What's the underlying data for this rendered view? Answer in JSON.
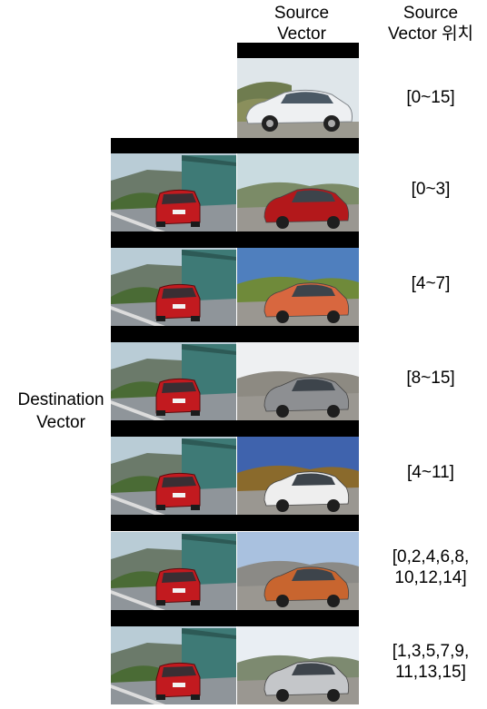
{
  "headers": {
    "source_vector": [
      "Source",
      "Vector"
    ],
    "source_vector_position": [
      "Source",
      "Vector 위치"
    ]
  },
  "destination_label": [
    "Destination",
    "Vector"
  ],
  "top_row": {
    "range_label": [
      "[0~15]"
    ],
    "source_car_color": "#e8ebee"
  },
  "rows": [
    {
      "range_label": [
        "[0~3]"
      ],
      "car_color": "#b3181b",
      "sky": "#c9dbe0",
      "ground": "#7b8b67"
    },
    {
      "range_label": [
        "[4~7]"
      ],
      "car_color": "#d8673f",
      "sky": "#4f7fbe",
      "ground": "#6f8a3a"
    },
    {
      "range_label": [
        "[8~15]"
      ],
      "car_color": "#8d8f92",
      "sky": "#eef0f2",
      "ground": "#8d8a82"
    },
    {
      "range_label": [
        "[4~11]"
      ],
      "car_color": "#eeeeee",
      "sky": "#3f63ad",
      "ground": "#8a6a2c"
    },
    {
      "range_label": [
        "[0,2,4,6,8,",
        "10,12,14]"
      ],
      "car_color": "#c8652f",
      "sky": "#a9c1df",
      "ground": "#8b8a86"
    },
    {
      "range_label": [
        "[1,3,5,7,9,",
        "11,13,15]"
      ],
      "car_color": "#c4c6c9",
      "sky": "#e9eef3",
      "ground": "#7d8a70"
    }
  ],
  "destination_car_color": "#c21a1f"
}
